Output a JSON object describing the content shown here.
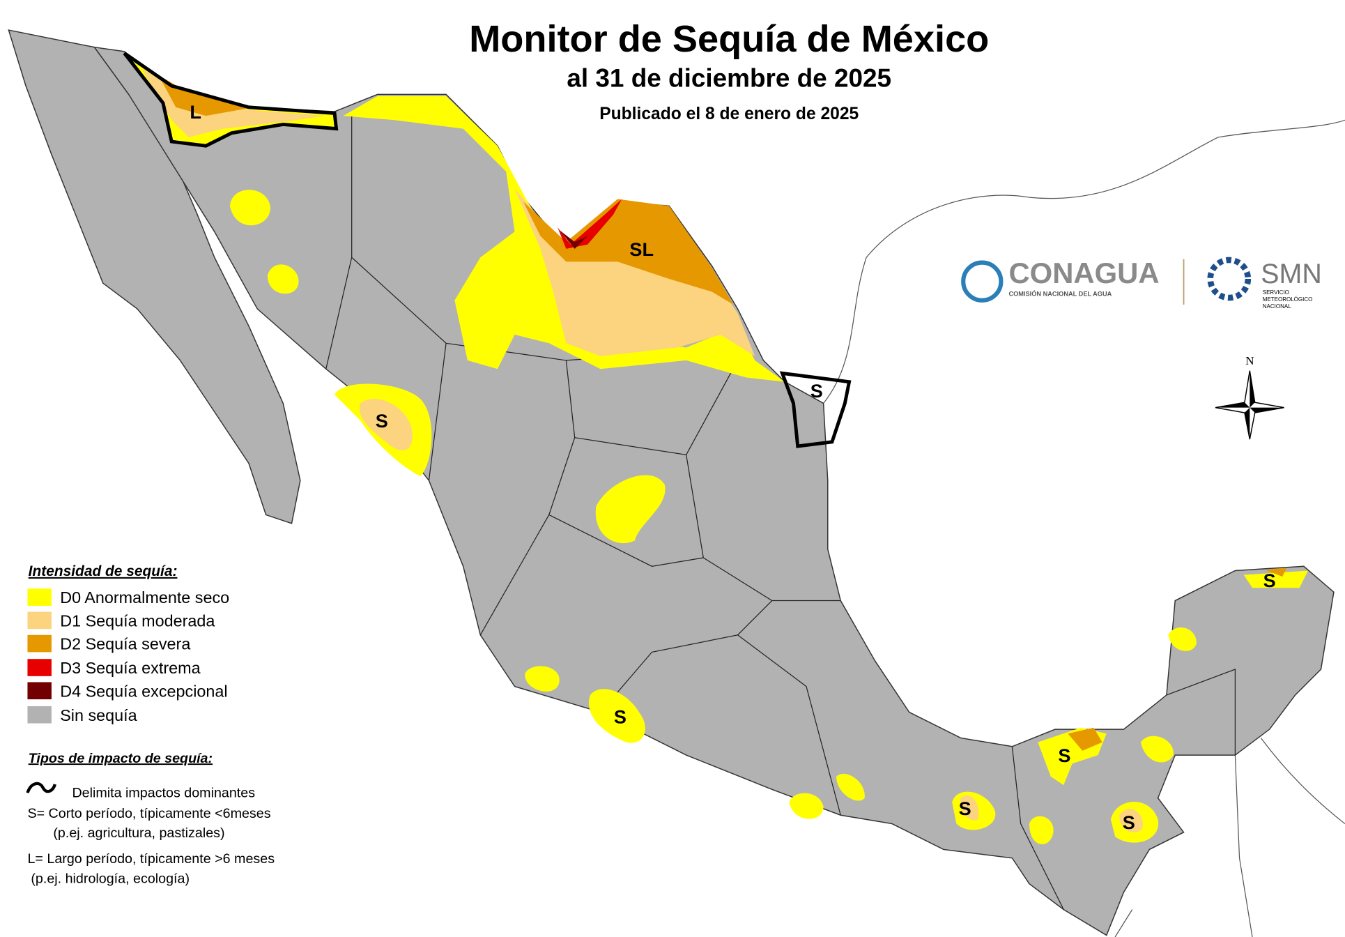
{
  "header": {
    "title": "Monitor de Sequía de México",
    "subtitle": "al 31 de diciembre de 2025",
    "published": "Publicado el 8 de enero de 2025"
  },
  "legend": {
    "title": "Intensidad de sequía:",
    "items": [
      {
        "label": "D0 Anormalmente seco",
        "color": "#ffff00"
      },
      {
        "label": "D1 Sequía moderada",
        "color": "#fcd37f"
      },
      {
        "label": "D2 Sequía severa",
        "color": "#e69800"
      },
      {
        "label": "D3 Sequía extrema",
        "color": "#e60000"
      },
      {
        "label": "D4 Sequía excepcional",
        "color": "#730000"
      },
      {
        "label": "Sin sequía",
        "color": "#b2b2b2"
      }
    ]
  },
  "impact": {
    "title": "Tipos de impacto de sequía:",
    "line": "Delimita impactos dominantes",
    "short": "S= Corto período, típicamente <6meses",
    "short_example": "(p.ej. agricultura, pastizales)",
    "long": "L= Largo período, típicamente >6 meses",
    "long_example": "(p.ej. hidrología, ecología)"
  },
  "map_labels": [
    "L",
    "SL",
    "S",
    "S",
    "S",
    "S",
    "S",
    "S",
    "S"
  ],
  "compass": "N",
  "logos": {
    "conagua": "CONAGUA",
    "conagua_sub": "COMISIÓN NACIONAL DEL AGUA",
    "smn": "SMN",
    "smn_sub": [
      "SERVICIO",
      "METEOROLÓGICO",
      "NACIONAL"
    ]
  }
}
